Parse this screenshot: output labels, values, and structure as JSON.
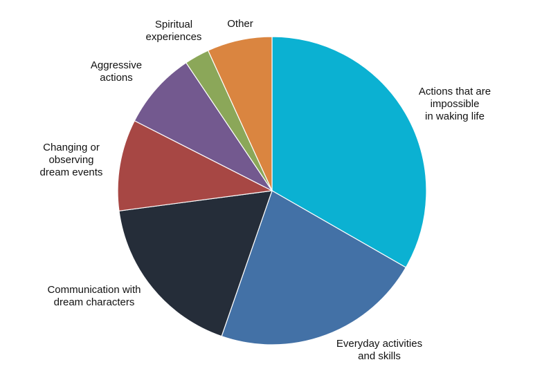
{
  "chart_data": {
    "type": "pie",
    "title": "",
    "start_angle_deg": 0,
    "direction": "clockwise",
    "slices": [
      {
        "label_lines": [
          "Actions that are",
          "impossible",
          "in waking life"
        ],
        "value": 33.3,
        "color": "#0BB1D2"
      },
      {
        "label_lines": [
          "Everyday activities",
          "and skills"
        ],
        "value": 22.0,
        "color": "#4371A6"
      },
      {
        "label_lines": [
          "Communication with",
          "dream characters"
        ],
        "value": 17.6,
        "color": "#252D39"
      },
      {
        "label_lines": [
          "Changing or",
          "observing",
          "dream events"
        ],
        "value": 9.6,
        "color": "#A74744"
      },
      {
        "label_lines": [
          "Aggressive",
          "actions"
        ],
        "value": 8.1,
        "color": "#73598F"
      },
      {
        "label_lines": [
          "Spiritual",
          "experiences"
        ],
        "value": 2.6,
        "color": "#8BA759"
      },
      {
        "label_lines": [
          "Other"
        ],
        "value": 6.8,
        "color": "#DA8540"
      }
    ]
  }
}
